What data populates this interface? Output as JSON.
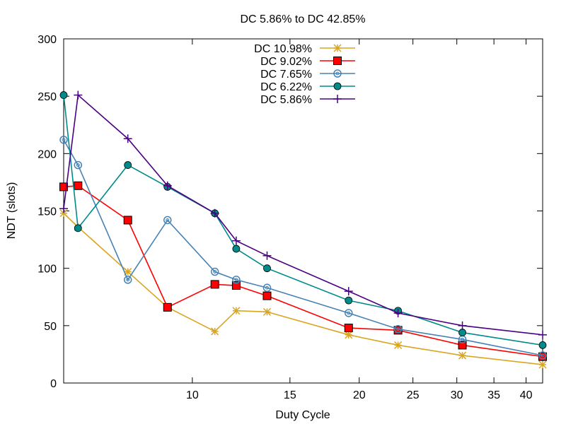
{
  "chart_data": {
    "type": "line",
    "title": "DC 5.86% to DC 42.85%",
    "xlabel": "Duty Cycle",
    "ylabel": "NDT (slots)",
    "x_scale": "log",
    "xlim": [
      5.86,
      42.85
    ],
    "ylim": [
      0,
      300
    ],
    "xticks": [
      10,
      15,
      20,
      25,
      30,
      35,
      40
    ],
    "yticks": [
      0,
      50,
      100,
      150,
      200,
      250,
      300
    ],
    "grid": false,
    "legend_position": "top-center",
    "x": [
      5.86,
      6.22,
      7.65,
      9.02,
      10.98,
      12.0,
      13.64,
      19.14,
      23.5,
      30.7,
      42.85
    ],
    "series": [
      {
        "name": "DC 10.98%",
        "color": "#DAA520",
        "marker": "star",
        "values": [
          148,
          136,
          97,
          66,
          45,
          63,
          62,
          42,
          33,
          24,
          16
        ]
      },
      {
        "name": "DC 9.02%",
        "color": "#FF0000",
        "marker": "square",
        "values": [
          171,
          172,
          142,
          66,
          86,
          85,
          76,
          48,
          46,
          33,
          23
        ]
      },
      {
        "name": "DC 7.65%",
        "color": "#4682B4",
        "marker": "open-circle",
        "values": [
          212,
          190,
          90,
          142,
          97,
          90,
          83,
          61,
          47,
          38,
          24
        ]
      },
      {
        "name": "DC 6.22%",
        "color": "#008B8B",
        "marker": "filled-circle",
        "values": [
          251,
          135,
          190,
          171,
          148,
          117,
          100,
          72,
          63,
          44,
          33
        ]
      },
      {
        "name": "DC 5.86%",
        "color": "#4B0082",
        "marker": "plus",
        "values": [
          152,
          251,
          213,
          172,
          148,
          124,
          111,
          80,
          61,
          50,
          42
        ]
      }
    ]
  }
}
